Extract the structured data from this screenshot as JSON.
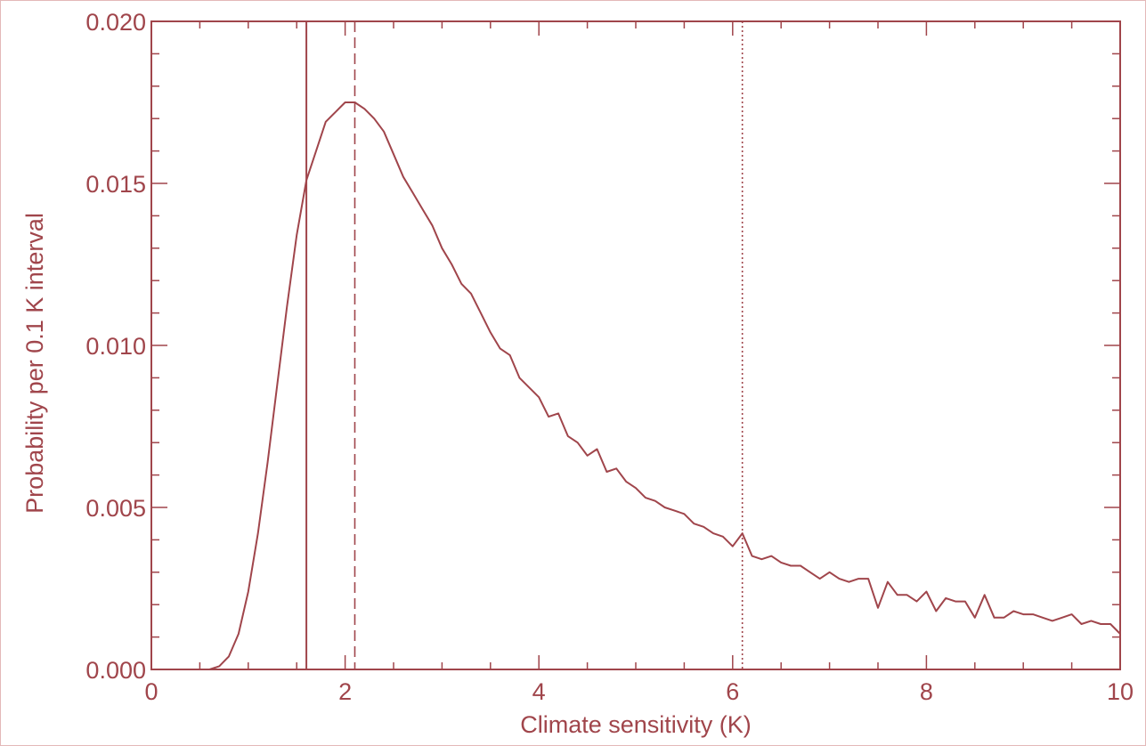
{
  "chart_data": {
    "type": "line",
    "xlabel": "Climate sensitivity (K)",
    "ylabel": "Probability per 0.1 K interval",
    "xlim": [
      0,
      10
    ],
    "ylim": [
      0,
      0.02
    ],
    "x_ticks": [
      "0",
      "2",
      "4",
      "6",
      "8",
      "10"
    ],
    "y_ticks": [
      "0.000",
      "0.005",
      "0.010",
      "0.015",
      "0.020"
    ],
    "grid": false,
    "series": [
      {
        "style": "solid",
        "x": [
          0.0,
          0.6,
          0.7,
          0.8,
          0.9,
          1.0,
          1.1,
          1.2,
          1.3,
          1.4,
          1.5,
          1.6,
          1.7,
          1.8,
          1.9,
          2.0,
          2.1,
          2.2,
          2.3,
          2.4,
          2.5,
          2.6,
          2.7,
          2.8,
          2.9,
          3.0,
          3.1,
          3.2,
          3.3,
          3.4,
          3.5,
          3.6,
          3.7,
          3.8,
          3.9,
          4.0,
          4.1,
          4.2,
          4.3,
          4.4,
          4.5,
          4.6,
          4.7,
          4.8,
          4.9,
          5.0,
          5.1,
          5.2,
          5.3,
          5.4,
          5.5,
          5.6,
          5.7,
          5.8,
          5.9,
          6.0,
          6.1,
          6.2,
          6.3,
          6.4,
          6.5,
          6.6,
          6.7,
          6.8,
          6.9,
          7.0,
          7.1,
          7.2,
          7.3,
          7.4,
          7.5,
          7.6,
          7.7,
          7.8,
          7.9,
          8.0,
          8.1,
          8.2,
          8.3,
          8.4,
          8.5,
          8.6,
          8.7,
          8.8,
          8.9,
          9.0,
          9.1,
          9.2,
          9.3,
          9.4,
          9.5,
          9.6,
          9.7,
          9.8,
          9.9,
          10.0
        ],
        "y": [
          0.0,
          0.0,
          0.0001,
          0.0004,
          0.0011,
          0.0024,
          0.0042,
          0.0064,
          0.0088,
          0.0112,
          0.0134,
          0.0151,
          0.016,
          0.0169,
          0.0172,
          0.0175,
          0.0175,
          0.0173,
          0.017,
          0.0166,
          0.0159,
          0.0152,
          0.0147,
          0.0142,
          0.0137,
          0.013,
          0.0125,
          0.0119,
          0.0116,
          0.011,
          0.0104,
          0.0099,
          0.0097,
          0.009,
          0.0087,
          0.0084,
          0.0078,
          0.0079,
          0.0072,
          0.007,
          0.0066,
          0.0068,
          0.0061,
          0.0062,
          0.0058,
          0.0056,
          0.0053,
          0.0052,
          0.005,
          0.0049,
          0.0048,
          0.0045,
          0.0044,
          0.0042,
          0.0041,
          0.0038,
          0.0042,
          0.0035,
          0.0034,
          0.0035,
          0.0033,
          0.0032,
          0.0032,
          0.003,
          0.0028,
          0.003,
          0.0028,
          0.0027,
          0.0028,
          0.0028,
          0.0019,
          0.0027,
          0.0023,
          0.0023,
          0.0021,
          0.0024,
          0.0018,
          0.0022,
          0.0021,
          0.0021,
          0.0016,
          0.0023,
          0.0016,
          0.0016,
          0.0018,
          0.0017,
          0.0017,
          0.0016,
          0.0015,
          0.0016,
          0.0017,
          0.0014,
          0.0015,
          0.0014,
          0.0014,
          0.0011
        ]
      }
    ],
    "vertical_lines": [
      {
        "x": 1.6,
        "style": "solid"
      },
      {
        "x": 2.1,
        "style": "dashed"
      },
      {
        "x": 6.1,
        "style": "dotted"
      }
    ],
    "color": "#a0454b"
  }
}
